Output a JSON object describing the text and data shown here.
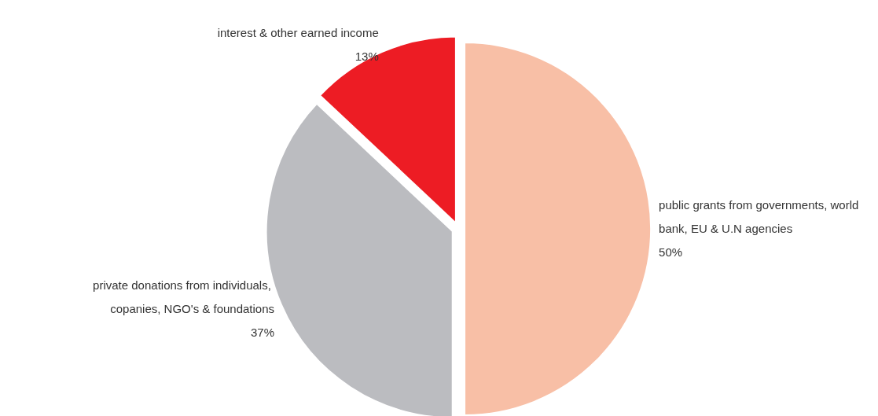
{
  "chart_data": {
    "type": "pie",
    "categories": [
      "public grants from governments, world bank, EU & U.N agencies",
      "private donations from individuals, copanies, NGO's & foundations",
      "interest & other earned income"
    ],
    "values": [
      50,
      37,
      13
    ],
    "colors": [
      "#f8bfa6",
      "#bbbcc0",
      "#ed1c24"
    ],
    "value_labels": [
      "50%",
      "37%",
      "13%"
    ],
    "legend": false
  }
}
